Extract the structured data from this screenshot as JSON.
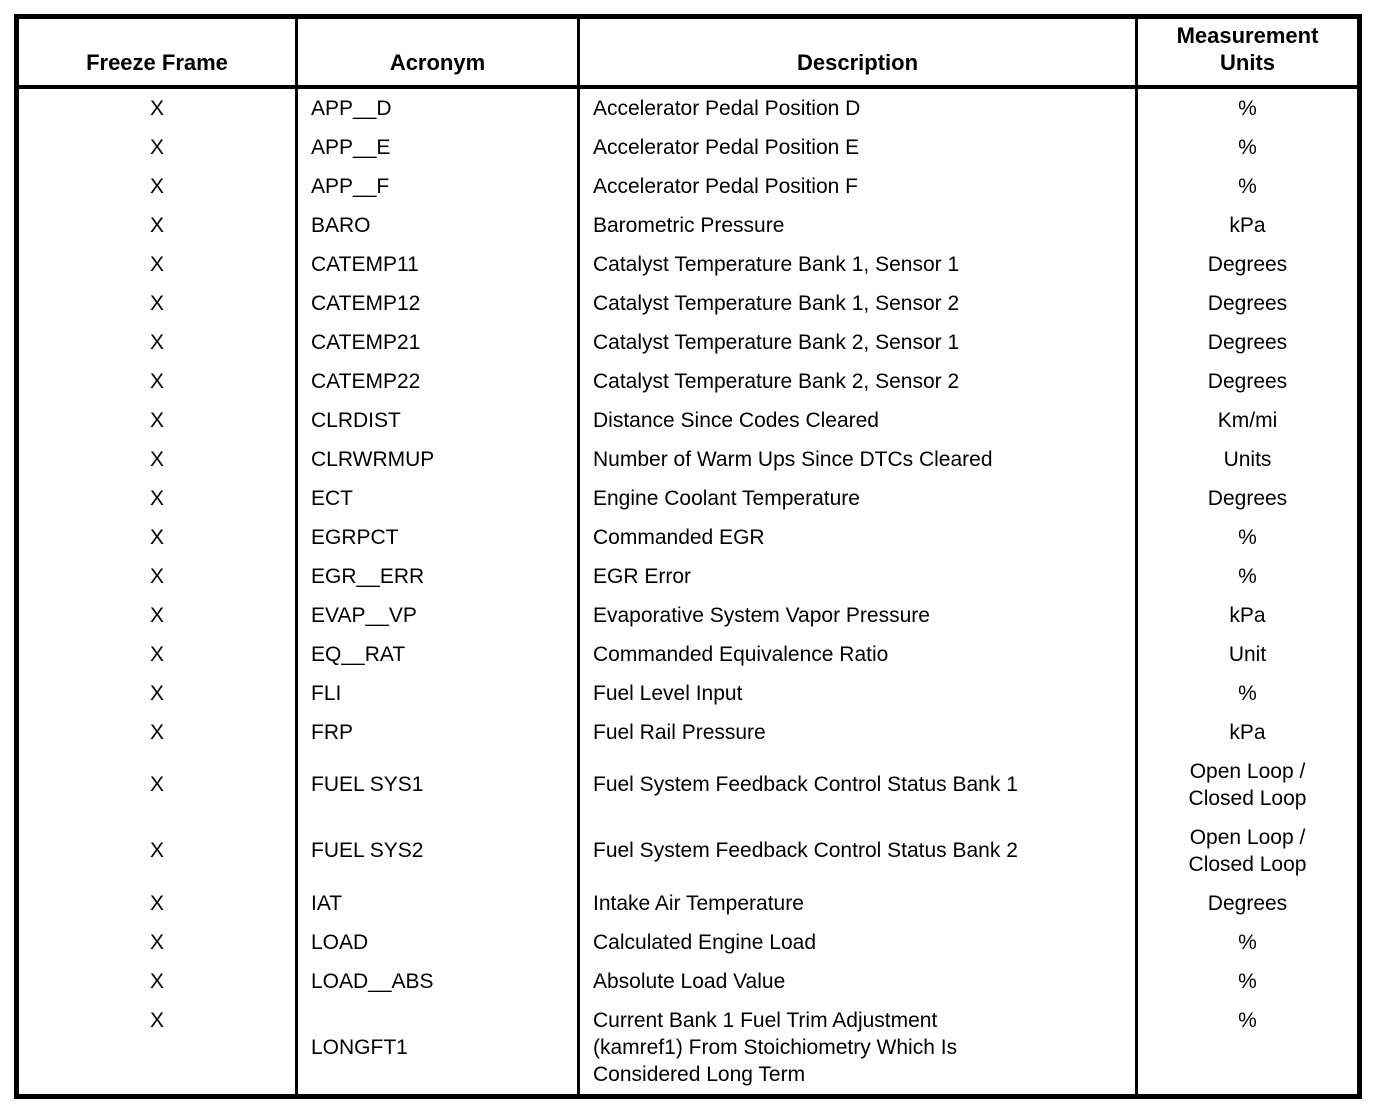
{
  "table": {
    "headers": {
      "freeze_frame": "Freeze Frame",
      "acronym": "Acronym",
      "description": "Description",
      "measurement_units": "Measurement\nUnits"
    },
    "rows": [
      {
        "freeze_frame": "X",
        "acronym": "APP__D",
        "description": "Accelerator Pedal Position D",
        "units": "%"
      },
      {
        "freeze_frame": "X",
        "acronym": "APP__E",
        "description": "Accelerator Pedal Position E",
        "units": "%"
      },
      {
        "freeze_frame": "X",
        "acronym": "APP__F",
        "description": "Accelerator Pedal Position F",
        "units": "%"
      },
      {
        "freeze_frame": "X",
        "acronym": "BARO",
        "description": "Barometric Pressure",
        "units": "kPa"
      },
      {
        "freeze_frame": "X",
        "acronym": "CATEMP11",
        "description": "Catalyst Temperature Bank 1, Sensor 1",
        "units": "Degrees"
      },
      {
        "freeze_frame": "X",
        "acronym": "CATEMP12",
        "description": "Catalyst Temperature Bank 1, Sensor 2",
        "units": "Degrees"
      },
      {
        "freeze_frame": "X",
        "acronym": "CATEMP21",
        "description": "Catalyst Temperature Bank 2, Sensor 1",
        "units": "Degrees"
      },
      {
        "freeze_frame": "X",
        "acronym": "CATEMP22",
        "description": "Catalyst Temperature Bank 2, Sensor 2",
        "units": "Degrees"
      },
      {
        "freeze_frame": "X",
        "acronym": "CLRDIST",
        "description": "Distance Since Codes Cleared",
        "units": "Km/mi"
      },
      {
        "freeze_frame": "X",
        "acronym": "CLRWRMUP",
        "description": "Number of Warm Ups Since DTCs Cleared",
        "units": "Units"
      },
      {
        "freeze_frame": "X",
        "acronym": "ECT",
        "description": "Engine Coolant Temperature",
        "units": "Degrees"
      },
      {
        "freeze_frame": "X",
        "acronym": "EGRPCT",
        "description": "Commanded EGR",
        "units": "%"
      },
      {
        "freeze_frame": "X",
        "acronym": "EGR__ERR",
        "description": "EGR Error",
        "units": "%"
      },
      {
        "freeze_frame": "X",
        "acronym": "EVAP__VP",
        "description": "Evaporative System Vapor Pressure",
        "units": "kPa"
      },
      {
        "freeze_frame": "X",
        "acronym": "EQ__RAT",
        "description": "Commanded Equivalence Ratio",
        "units": "Unit"
      },
      {
        "freeze_frame": "X",
        "acronym": "FLI",
        "description": "Fuel Level Input",
        "units": "%"
      },
      {
        "freeze_frame": "X",
        "acronym": "FRP",
        "description": "Fuel Rail Pressure",
        "units": "kPa"
      },
      {
        "freeze_frame": "X",
        "acronym": "FUEL SYS1",
        "description": "Fuel System Feedback Control Status Bank 1",
        "units": "Open Loop /\nClosed Loop"
      },
      {
        "freeze_frame": "X",
        "acronym": "FUEL SYS2",
        "description": "Fuel System Feedback Control Status Bank 2",
        "units": "Open Loop /\nClosed Loop"
      },
      {
        "freeze_frame": "X",
        "acronym": "IAT",
        "description": "Intake Air Temperature",
        "units": "Degrees"
      },
      {
        "freeze_frame": "X",
        "acronym": "LOAD",
        "description": "Calculated Engine Load",
        "units": "%"
      },
      {
        "freeze_frame": "X",
        "acronym": "LOAD__ABS",
        "description": "Absolute Load Value",
        "units": "%"
      },
      {
        "freeze_frame": "X",
        "acronym": "LONGFT1",
        "description": "Current Bank 1 Fuel Trim Adjustment\n(kamref1) From Stoichiometry Which Is\nConsidered Long Term",
        "units": "%"
      }
    ]
  }
}
